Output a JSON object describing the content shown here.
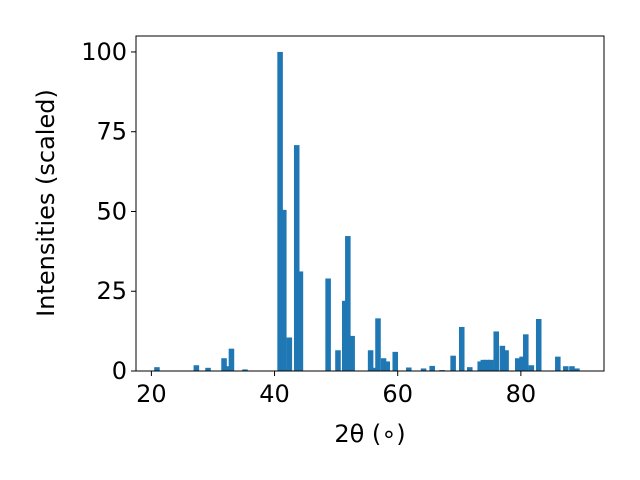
{
  "chart_data": {
    "type": "bar",
    "title": "",
    "xlabel": "2θ (∘)",
    "ylabel": "Intensities (scaled)",
    "xlim": [
      17.5,
      93.5
    ],
    "ylim": [
      0,
      105
    ],
    "xticks": [
      20,
      40,
      60,
      80
    ],
    "yticks": [
      0,
      25,
      50,
      75,
      100
    ],
    "grid": false,
    "bar_color": "#1f77b4",
    "bar_width": 0.9,
    "series": [
      {
        "x": [
          20.9,
          27.3,
          29.2,
          31.8,
          32.3,
          33.0,
          35.2,
          40.9,
          41.5,
          42.4,
          43.6,
          44.2,
          48.7,
          50.3,
          51.4,
          51.9,
          52.6,
          55.6,
          56.2,
          56.8,
          57.7,
          58.3,
          59.6,
          61.8,
          64.2,
          65.6,
          67.2,
          69.0,
          70.4,
          71.7,
          73.4,
          73.9,
          74.5,
          75.1,
          76.0,
          77.0,
          77.6,
          79.5,
          80.2,
          80.8,
          81.7,
          82.9,
          86.0,
          87.3,
          88.3,
          89.1
        ],
        "y": [
          1.2,
          1.8,
          1.0,
          4.0,
          1.5,
          7.0,
          0.5,
          100.0,
          50.5,
          10.5,
          70.8,
          31.2,
          29.0,
          6.5,
          22.0,
          42.3,
          11.0,
          6.5,
          1.0,
          16.5,
          4.0,
          3.0,
          6.0,
          1.1,
          0.8,
          1.6,
          0.3,
          4.8,
          13.8,
          1.2,
          3.0,
          3.5,
          3.5,
          3.5,
          12.4,
          7.9,
          6.5,
          4.0,
          4.5,
          11.5,
          1.8,
          16.3,
          4.5,
          1.5,
          1.5,
          0.8
        ]
      }
    ]
  }
}
